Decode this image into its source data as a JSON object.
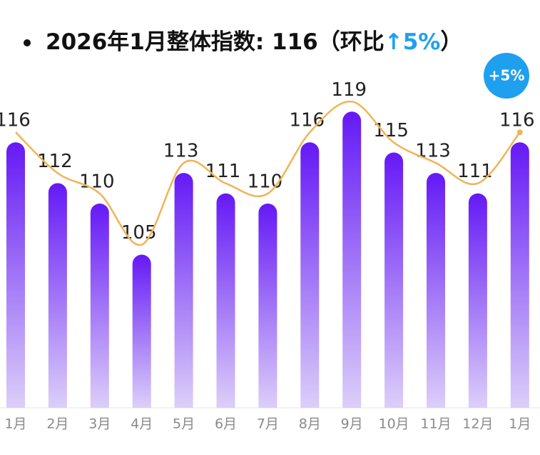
{
  "chart_data": {
    "type": "bar",
    "title": "2026年1月整体指数: 116（环比",
    "title_highlight": "↑5%",
    "title_end": "）",
    "badge": "+5%",
    "categories": [
      "1月",
      "2月",
      "3月",
      "4月",
      "5月",
      "6月",
      "7月",
      "8月",
      "9月",
      "10月",
      "11月",
      "12月",
      "1月"
    ],
    "values": [
      116,
      112,
      110,
      105,
      113,
      111,
      110,
      116,
      119,
      115,
      113,
      111,
      116
    ],
    "bar_color_top": "#6519f5",
    "bar_color_bottom": "#dccff9",
    "line_color": "#f0b455",
    "highlight_color": "#1ea0ee",
    "ylim": [
      90,
      121
    ]
  }
}
